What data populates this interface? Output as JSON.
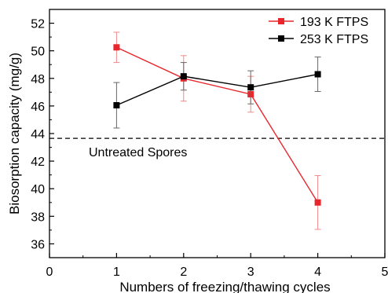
{
  "chart_data": {
    "type": "line",
    "title": "",
    "xlabel": "Numbers of freezing/thawing cycles",
    "ylabel": "Biosorption capacity (mg/g)",
    "xlim": [
      0,
      5
    ],
    "ylim": [
      35,
      53
    ],
    "x_ticks": [
      "0",
      "1",
      "2",
      "3",
      "4",
      "5"
    ],
    "y_ticks": [
      "36",
      "38",
      "40",
      "42",
      "44",
      "46",
      "48",
      "50",
      "52"
    ],
    "grid": false,
    "legend_position": "top-right",
    "series": [
      {
        "name": "193 K FTPS",
        "color": "#e8262c",
        "marker": "square",
        "x": [
          1,
          2,
          3,
          4
        ],
        "y": [
          50.25,
          48.0,
          46.85,
          39.0
        ],
        "error": [
          1.1,
          1.65,
          1.3,
          1.95
        ]
      },
      {
        "name": "253 K FTPS",
        "color": "#000000",
        "marker": "square",
        "x": [
          1,
          2,
          3,
          4
        ],
        "y": [
          46.05,
          48.15,
          47.35,
          48.3
        ],
        "error": [
          1.65,
          1.0,
          1.2,
          1.25
        ]
      }
    ],
    "reference_line": {
      "label": "Untreated Spores",
      "y": 43.65,
      "style": "dashed",
      "color": "#000000"
    }
  }
}
